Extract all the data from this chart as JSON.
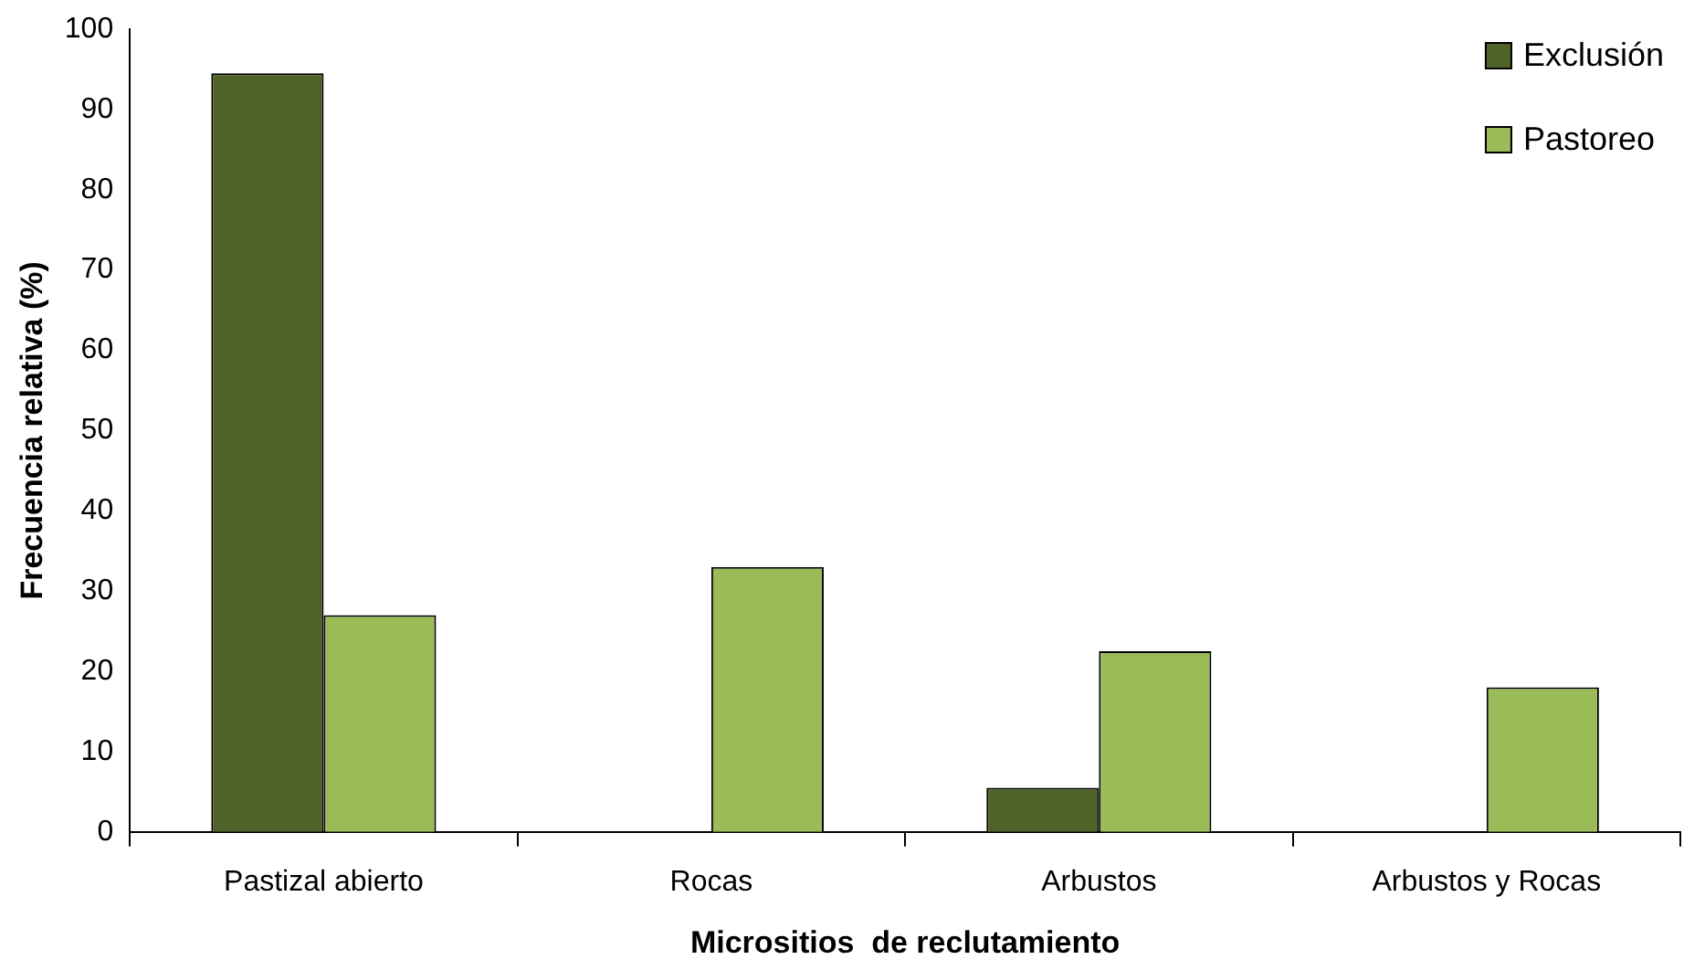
{
  "chart_data": {
    "type": "bar",
    "xlabel": "Micrositios  de reclutamiento",
    "ylabel": "Frecuencia relativa (%)",
    "categories": [
      "Pastizal abierto",
      "Rocas",
      "Arbustos",
      "Arbustos y Rocas"
    ],
    "series": [
      {
        "name": "Exclusión",
        "color": "#4f6228",
        "values": [
          94.5,
          0,
          5.5,
          0
        ]
      },
      {
        "name": "Pastoreo",
        "color": "#9bbb59",
        "values": [
          27,
          33,
          22.5,
          18
        ]
      }
    ],
    "ylim": [
      0,
      100
    ],
    "yticks": [
      0,
      10,
      20,
      30,
      40,
      50,
      60,
      70,
      80,
      90,
      100
    ],
    "grid": false,
    "legend": "top right"
  }
}
